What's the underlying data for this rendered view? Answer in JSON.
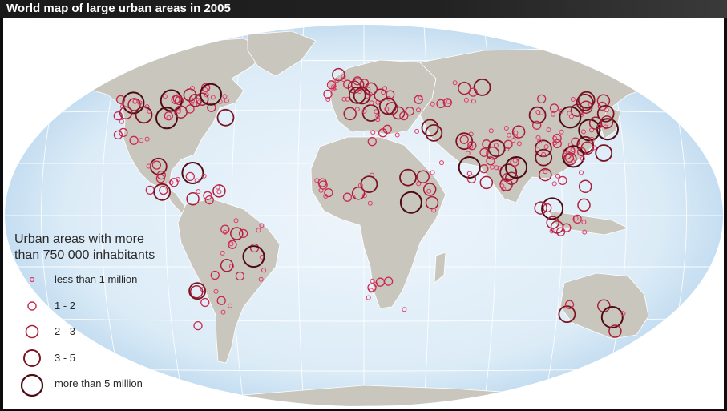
{
  "title": "World map of large urban areas in 2005",
  "legend": {
    "title_line1": "Urban areas with more",
    "title_line2": "than 750 000 inhabitants",
    "items": [
      {
        "label": "less than 1 million",
        "size_class": "lt1"
      },
      {
        "label": "1  -  2",
        "size_class": "1-2"
      },
      {
        "label": "2  -  3",
        "size_class": "2-3"
      },
      {
        "label": "3  -  5",
        "size_class": "3-5"
      },
      {
        "label": "more than 5 million",
        "size_class": "gt5"
      }
    ]
  },
  "colors": {
    "ocean": "#dcecf7",
    "land": "#c9c6bd",
    "border": "#ffffff",
    "small_circle": "#e0396a",
    "medium_circle": "#b0243a",
    "large_circle": "#5a0f14",
    "graticule": "#ffffff"
  }
}
